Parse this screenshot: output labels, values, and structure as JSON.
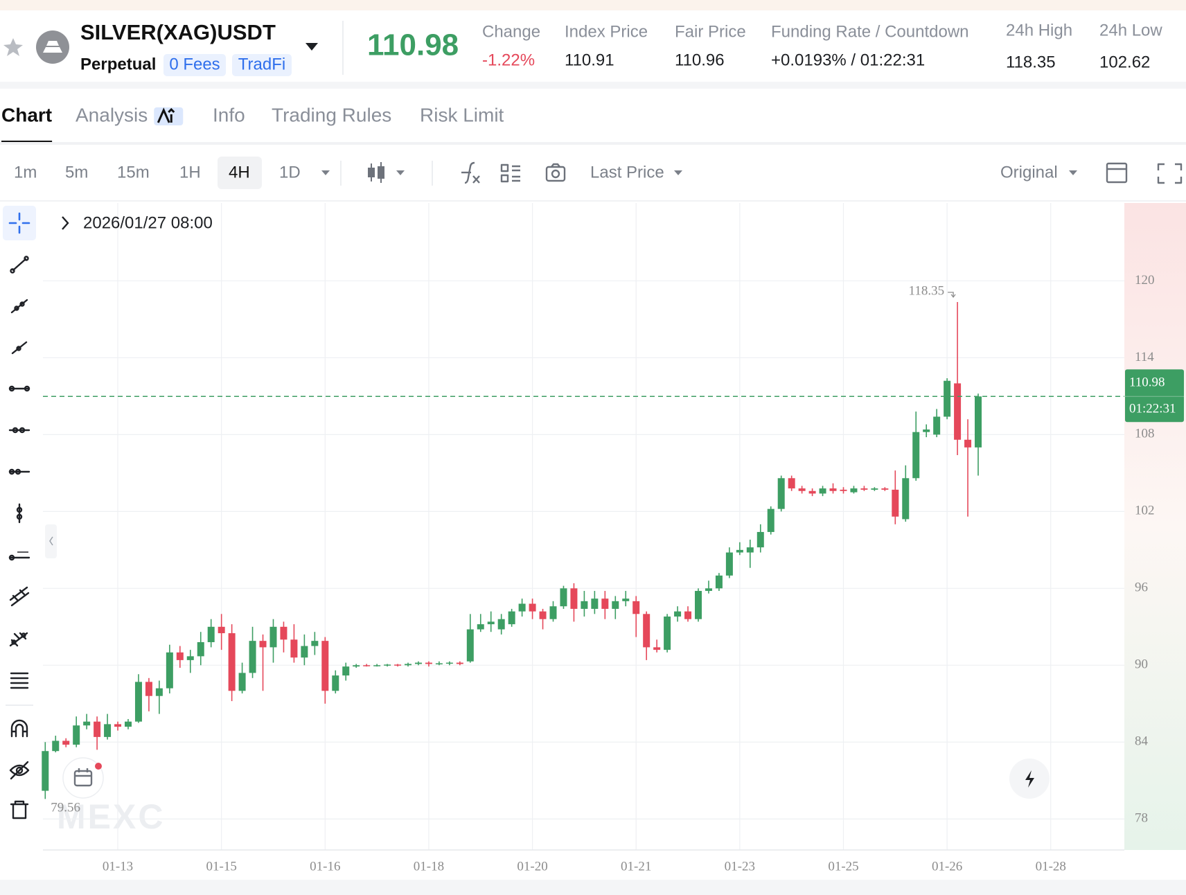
{
  "header": {
    "symbol": "SILVER(XAG)USDT",
    "contract": "Perpetual",
    "tags": [
      "0 Fees",
      "TradFi"
    ],
    "last_price": "110.98",
    "stats": [
      {
        "label": "Change",
        "value": "-1.22%"
      },
      {
        "label": "Index Price",
        "value": "110.91"
      },
      {
        "label": "Fair Price",
        "value": "110.96"
      },
      {
        "label": "Funding Rate / Countdown",
        "value": "+0.0193% / 01:22:31"
      },
      {
        "label": "24h High",
        "value": "118.35"
      },
      {
        "label": "24h Low",
        "value": "102.62"
      }
    ]
  },
  "tabs": {
    "items": [
      "Chart",
      "Analysis",
      "Info",
      "Trading Rules",
      "Risk Limit"
    ],
    "active": "Chart"
  },
  "toolbar": {
    "intervals": [
      "1m",
      "5m",
      "15m",
      "1H",
      "4H",
      "1D"
    ],
    "active_interval": "4H",
    "price_type": "Last Price",
    "view": "Original"
  },
  "chart_data": {
    "type": "candlestick",
    "crosshair_time": "2026/01/27 08:00",
    "watermark": "MEXC",
    "up_color": "#3d9e63",
    "down_color": "#e5485a",
    "grid": true,
    "open": [
      80.2,
      83.3,
      84.1,
      83.8,
      85.3,
      85.6,
      84.4,
      85.4,
      85.2,
      85.6,
      88.7,
      87.6,
      88.2,
      91.0,
      90.4,
      90.7,
      91.8,
      93.0,
      92.5,
      88.0,
      89.4,
      91.9,
      91.4,
      93.0,
      92.0,
      90.6,
      91.5,
      91.9,
      88.0,
      89.2,
      89.9,
      90.0,
      89.95,
      90.0,
      90.05,
      90.0,
      90.1,
      90.2,
      90.1,
      90.15,
      90.2,
      90.3,
      92.8,
      93.2,
      92.8,
      93.2,
      94.2,
      94.8,
      94.2,
      93.6,
      94.6,
      96.0,
      94.4,
      94.4,
      95.2,
      94.4,
      95.0,
      95.0,
      94.0,
      91.4,
      91.2,
      93.8,
      94.2,
      93.6,
      95.8,
      96.0,
      97.0,
      98.8,
      98.8,
      99.2,
      100.4,
      102.2,
      104.6,
      103.8,
      103.6,
      103.4,
      103.8,
      103.7,
      103.5,
      103.8,
      103.7,
      103.8,
      103.7,
      101.4,
      104.6,
      108.2,
      108.0,
      109.4,
      112.0,
      107.6,
      107.0
    ],
    "high": [
      84.0,
      84.5,
      84.3,
      86.0,
      86.2,
      86.0,
      86.2,
      85.6,
      85.8,
      89.3,
      89.0,
      88.8,
      91.6,
      91.5,
      91.2,
      92.6,
      93.6,
      94.0,
      93.2,
      90.2,
      93.0,
      92.4,
      93.6,
      93.4,
      93.2,
      92.4,
      92.6,
      92.2,
      89.6,
      90.2,
      90.1,
      90.1,
      90.1,
      90.1,
      90.1,
      90.2,
      90.3,
      90.3,
      90.3,
      90.3,
      90.3,
      94.0,
      94.0,
      94.2,
      94.0,
      94.4,
      95.2,
      95.2,
      94.4,
      95.0,
      96.2,
      96.4,
      95.8,
      95.8,
      95.8,
      95.4,
      95.8,
      95.4,
      94.2,
      92.0,
      94.0,
      94.6,
      94.6,
      96.0,
      96.6,
      97.2,
      99.2,
      99.6,
      99.8,
      101.0,
      102.4,
      104.8,
      104.8,
      104.0,
      103.8,
      104.0,
      104.2,
      103.9,
      104.0,
      104.0,
      103.9,
      103.9,
      105.2,
      105.6,
      109.8,
      108.8,
      110.0,
      112.4,
      118.35,
      109.2,
      111.2
    ],
    "low": [
      79.56,
      83.2,
      83.6,
      83.6,
      85.0,
      83.4,
      84.2,
      84.9,
      85.0,
      85.5,
      86.4,
      86.2,
      87.8,
      89.8,
      89.4,
      90.0,
      91.4,
      91.2,
      87.2,
      87.8,
      89.0,
      88.0,
      90.2,
      91.0,
      90.2,
      90.0,
      90.8,
      87.0,
      87.8,
      88.8,
      89.8,
      89.9,
      89.9,
      89.9,
      89.9,
      89.9,
      90.0,
      89.9,
      90.0,
      90.0,
      90.0,
      90.2,
      92.6,
      92.6,
      92.4,
      93.0,
      93.8,
      93.6,
      92.8,
      93.4,
      94.4,
      93.4,
      93.8,
      94.0,
      93.6,
      93.6,
      94.6,
      92.2,
      90.4,
      91.0,
      91.0,
      93.4,
      93.4,
      93.4,
      95.6,
      95.8,
      96.8,
      98.6,
      97.6,
      98.8,
      100.2,
      102.0,
      103.6,
      103.4,
      103.2,
      103.2,
      103.4,
      103.4,
      103.4,
      103.6,
      103.6,
      103.6,
      101.0,
      101.2,
      104.4,
      107.8,
      107.8,
      109.2,
      106.4,
      101.6,
      104.8
    ],
    "close": [
      83.3,
      84.1,
      83.8,
      85.3,
      85.6,
      84.4,
      85.4,
      85.2,
      85.6,
      88.7,
      87.6,
      88.2,
      91.0,
      90.4,
      90.7,
      91.8,
      93.0,
      92.5,
      88.0,
      89.4,
      91.9,
      91.4,
      93.0,
      92.0,
      90.6,
      91.5,
      91.9,
      88.0,
      89.2,
      89.9,
      90.0,
      89.95,
      90.0,
      90.05,
      90.0,
      90.1,
      90.2,
      90.1,
      90.15,
      90.2,
      90.1,
      92.8,
      93.2,
      93.4,
      93.6,
      94.2,
      94.8,
      94.2,
      93.6,
      94.6,
      96.0,
      94.4,
      95.0,
      95.2,
      94.4,
      95.0,
      95.2,
      94.0,
      91.4,
      91.2,
      93.8,
      94.2,
      93.6,
      95.8,
      96.0,
      97.0,
      98.8,
      99.0,
      99.2,
      100.4,
      102.2,
      104.6,
      103.8,
      103.6,
      103.4,
      103.8,
      103.6,
      103.6,
      103.8,
      103.7,
      103.8,
      103.7,
      101.6,
      104.6,
      108.2,
      108.4,
      109.4,
      112.2,
      107.6,
      107.0,
      110.98
    ],
    "ylim": [
      75.58,
      126.08
    ],
    "yticks": [
      78,
      84,
      90,
      96,
      102,
      108,
      114,
      120
    ],
    "xlim": [
      -0.22,
      104.1
    ],
    "xticks": [
      {
        "value": 7,
        "label": "01-13"
      },
      {
        "value": 17,
        "label": "01-15"
      },
      {
        "value": 27,
        "label": "01-16"
      },
      {
        "value": 37,
        "label": "01-18"
      },
      {
        "value": 47,
        "label": "01-20"
      },
      {
        "value": 57,
        "label": "01-21"
      },
      {
        "value": 67,
        "label": "01-23"
      },
      {
        "value": 77,
        "label": "01-25"
      },
      {
        "value": 87,
        "label": "01-26"
      },
      {
        "value": 97,
        "label": "01-28"
      }
    ],
    "last_price": 110.98,
    "countdown": "01:22:31",
    "high_marker": 118.35,
    "low_marker": 79.56
  }
}
